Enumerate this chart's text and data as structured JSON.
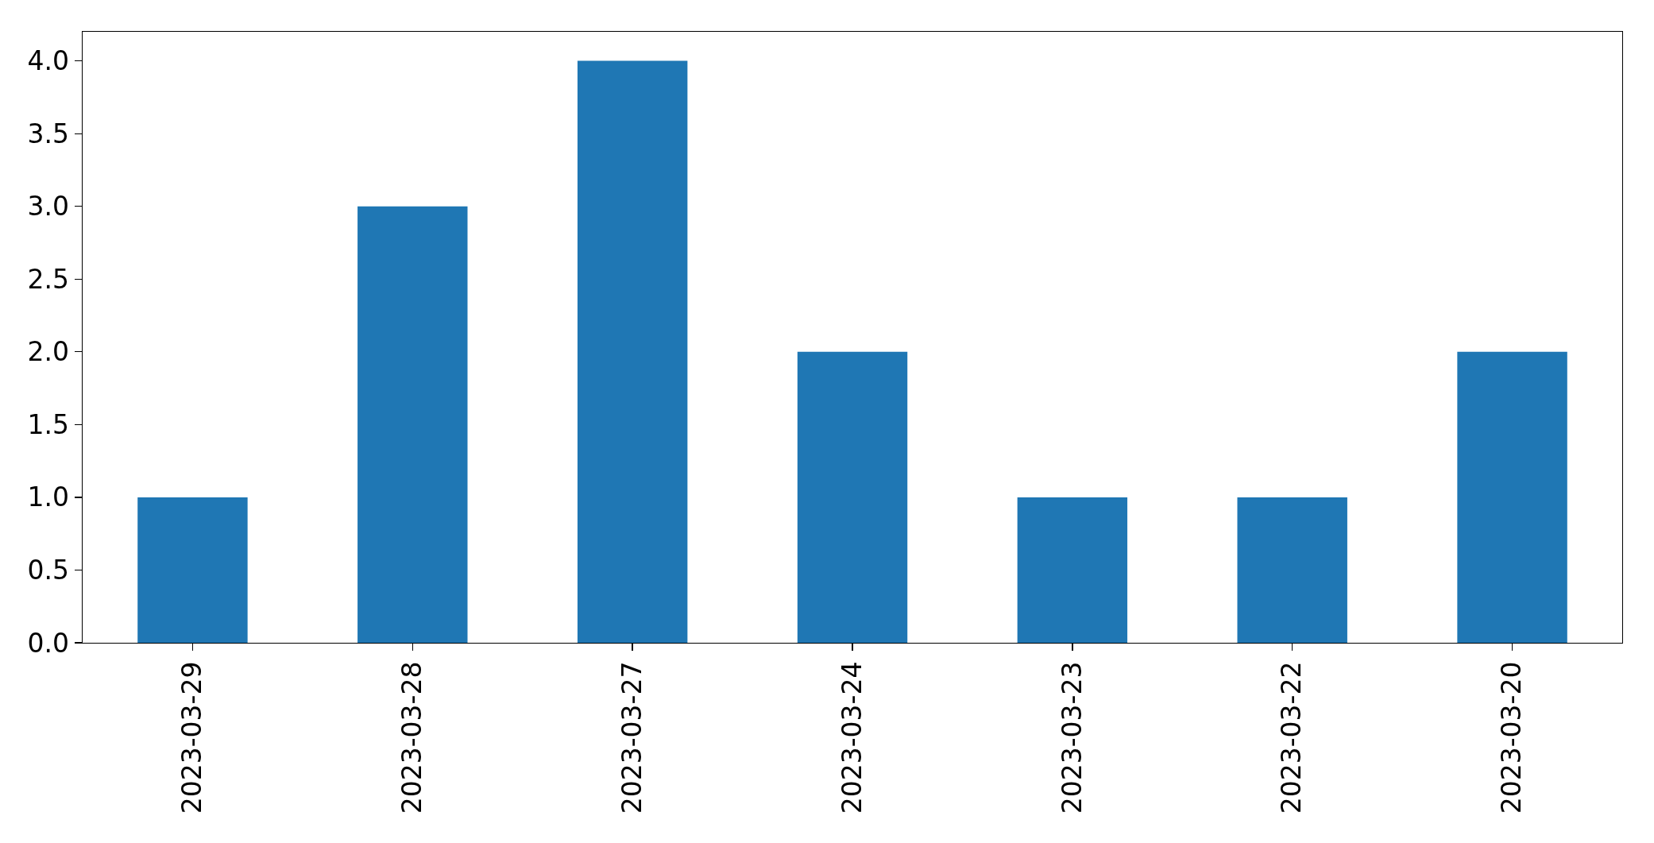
{
  "chart_data": {
    "type": "bar",
    "categories": [
      "2023-03-29",
      "2023-03-28",
      "2023-03-27",
      "2023-03-24",
      "2023-03-23",
      "2023-03-22",
      "2023-03-20"
    ],
    "values": [
      1,
      3,
      4,
      2,
      1,
      1,
      2
    ],
    "color": "#1f77b4",
    "ylim": [
      0,
      4.2
    ],
    "yticks": [
      {
        "value": 0,
        "label": "0.0"
      },
      {
        "value": 0.5,
        "label": "0.5"
      },
      {
        "value": 1,
        "label": "1.0"
      },
      {
        "value": 1.5,
        "label": "1.5"
      },
      {
        "value": 2,
        "label": "2.0"
      },
      {
        "value": 2.5,
        "label": "2.5"
      },
      {
        "value": 3,
        "label": "3.0"
      },
      {
        "value": 3.5,
        "label": "3.5"
      },
      {
        "value": 4,
        "label": "4.0"
      }
    ]
  }
}
